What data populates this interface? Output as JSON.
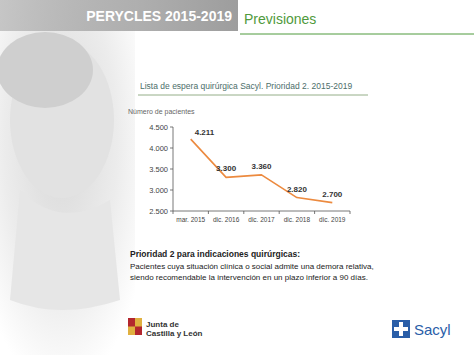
{
  "slide": {
    "header": "PERYCLES 2015-2019",
    "section": "Previsiones",
    "note_title": "Prioridad 2 para indicaciones quirúrgicas:",
    "note_lines": [
      "Pacientes cuya situación clínica o social admite una demora relativa,",
      "siendo recomendable la intervención en un plazo inferior a 90 días."
    ],
    "logo_left": [
      "Junta de",
      "Castilla y León"
    ],
    "logo_right": "Sacyl"
  },
  "chart_data": {
    "type": "line",
    "title": "Lista de espera quirúrgica Sacyl. Prioridad 2. 2015-2019",
    "y_label": "Número de pacientes",
    "categories": [
      "mar. 2015",
      "dic. 2016",
      "dic. 2017",
      "dic. 2018",
      "dic. 2019"
    ],
    "values": [
      4211,
      3300,
      3360,
      2820,
      2700
    ],
    "value_labels": [
      "4.211",
      "3.300",
      "3.360",
      "2.820",
      "2.700"
    ],
    "color": "#ec8a3f",
    "marker": "none",
    "data_labels": true,
    "grid": false,
    "ylim": [
      2500,
      4500
    ],
    "yticks": [
      {
        "value": 2500,
        "label": "2.500"
      },
      {
        "value": 3000,
        "label": "3.000"
      },
      {
        "value": 3500,
        "label": "3.500"
      },
      {
        "value": 4000,
        "label": "4.000"
      },
      {
        "value": 4500,
        "label": "4.500"
      }
    ]
  }
}
